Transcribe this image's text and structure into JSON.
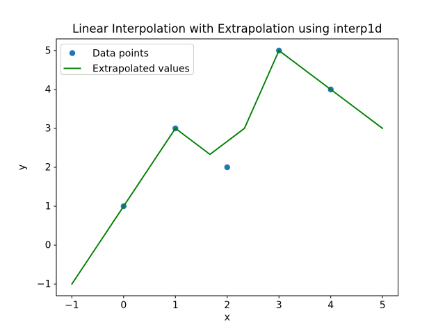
{
  "figure": {
    "background": "#ffffff",
    "frame_color": "#000000",
    "text_color": "#000000"
  },
  "chart_data": {
    "type": "line",
    "title": "Linear Interpolation with Extrapolation using interp1d",
    "xlabel": "x",
    "ylabel": "y",
    "xlim": [
      -1.3,
      5.3
    ],
    "ylim": [
      -1.3,
      5.3
    ],
    "xticks": [
      -1,
      0,
      1,
      2,
      3,
      4,
      5
    ],
    "yticks": [
      -1,
      0,
      1,
      2,
      3,
      4,
      5
    ],
    "xtick_labels": [
      "−1",
      "0",
      "1",
      "2",
      "3",
      "4",
      "5"
    ],
    "ytick_labels": [
      "−1",
      "0",
      "1",
      "2",
      "3",
      "4",
      "5"
    ],
    "grid": false,
    "legend": {
      "position": "upper left",
      "border_color": "#cccccc",
      "background": "#ffffff",
      "entries": [
        {
          "label": "Data points",
          "type": "marker",
          "color": "#1f77b4"
        },
        {
          "label": "Extrapolated values",
          "type": "line",
          "color": "#008000"
        }
      ]
    },
    "series": [
      {
        "name": "Data points",
        "type": "scatter",
        "color": "#1f77b4",
        "x": [
          0,
          1,
          2,
          3,
          4
        ],
        "y": [
          1,
          3,
          2,
          5,
          4
        ]
      },
      {
        "name": "Extrapolated values",
        "type": "line",
        "color": "#008000",
        "x": [
          -1,
          -0.333,
          0.333,
          1,
          1.667,
          2.333,
          3,
          3.667,
          4.333,
          5
        ],
        "y": [
          -1,
          0.333,
          1.667,
          3,
          2.333,
          3,
          5,
          4.333,
          3.667,
          3
        ]
      }
    ]
  }
}
